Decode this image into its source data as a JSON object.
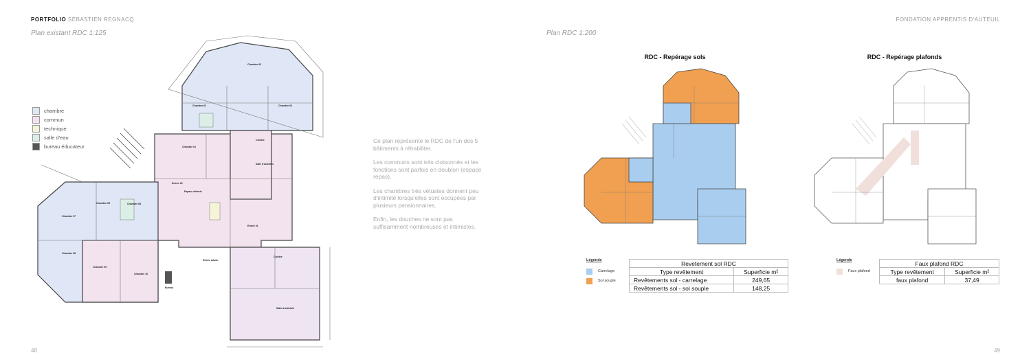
{
  "header": {
    "left_bold": "PORTFOLIO",
    "left_light": "SÉBASTIEN REGNACQ",
    "right": "FONDATION APPRENTIS D'AUTEUIL"
  },
  "left_page": {
    "subtitle": "Plan existant RDC 1:125",
    "legend": [
      "chambre",
      "commun",
      "technique",
      "salle d'eau",
      "bureau éducateur"
    ],
    "rooms": [
      "Chambre 03",
      "Chambre 02",
      "Chambre 04",
      "Chambre 01",
      "Cuisine",
      "Salle d'activités",
      "Espace détente",
      "Entrée 02",
      "Entrée 01",
      "Bureau",
      "Entrée admin.",
      "Chambre 05",
      "Chambre 06",
      "Chambre 07",
      "Chambre 08",
      "Chambre 09",
      "Chambre 10",
      "Cuisine",
      "Salle d'activités"
    ],
    "page_number": "48"
  },
  "middle_text": [
    "Ce plan représente le RDC de l'un des 5 bâtiments à réhabiliter.",
    "Les communs sont très cloisonnés et les fonctions sont parfois en doublon (espace repas).",
    "Les chambres très vétustes donnent peu d'intimité lorsqu'elles sont occupées par plusieurs pensionnaires.",
    "Enfin, les douches ne sont pas suffisamment nombreuses et intimistes."
  ],
  "right_page": {
    "subtitle": "Plan RDC 1:200",
    "floors": {
      "title": "RDC - Repérage sols",
      "legend_title": "Légende",
      "legend": [
        "Carrelage",
        "Sol souple"
      ],
      "table": {
        "title": "Revetement sol RDC",
        "headers": [
          "Type revêtement",
          "Superficie m²"
        ],
        "rows": [
          [
            "Revêtements sol - carrelage",
            "249,65"
          ],
          [
            "Revêtements sol - sol souple",
            "148,25"
          ]
        ]
      }
    },
    "ceilings": {
      "title": "RDC - Repérage plafonds",
      "legend_title": "Légende",
      "legend": [
        "Faux plafond"
      ],
      "table": {
        "title": "Faux plafond RDC",
        "headers": [
          "Type revêtement",
          "Superficie m²"
        ],
        "rows": [
          [
            "faux plafond",
            "37,49"
          ]
        ]
      }
    },
    "page_number": "49"
  }
}
